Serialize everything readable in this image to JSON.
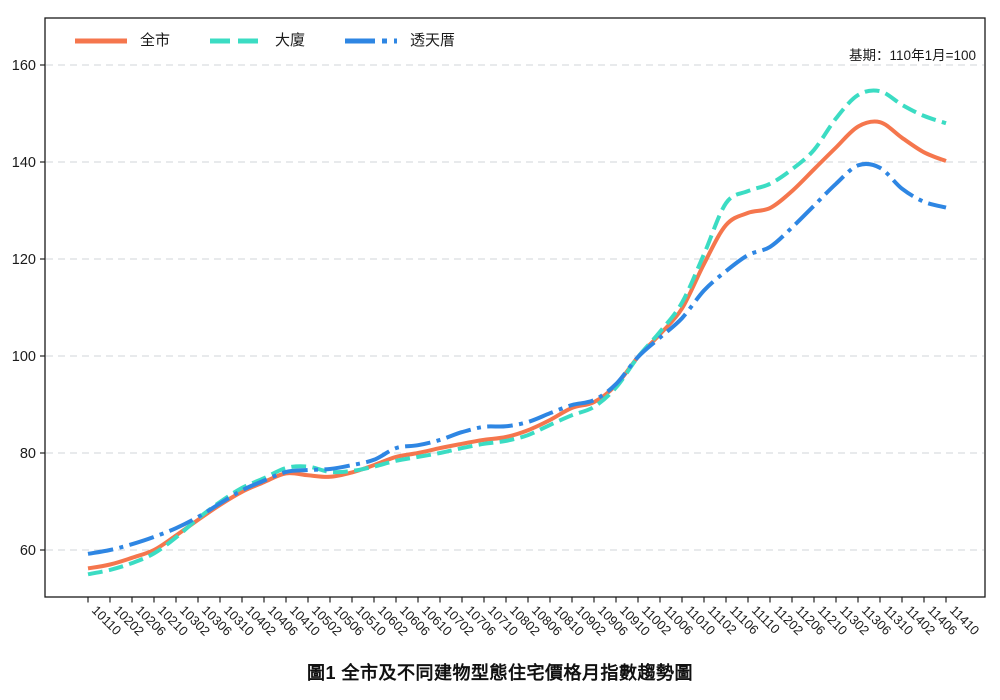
{
  "chart_data": {
    "type": "line",
    "title": "圖1 全市及不同建物型態住宅價格月指數趨勢圖",
    "annotation": "基期：110年1月=100",
    "xlabel": "",
    "ylabel": "",
    "ylim": [
      50,
      170
    ],
    "yticks": [
      60,
      80,
      100,
      120,
      140,
      160
    ],
    "grid": "horizontal-dashed",
    "legend_position": "top-left",
    "x_labels": [
      "10110",
      "10202",
      "10206",
      "10210",
      "10302",
      "10306",
      "10310",
      "10402",
      "10406",
      "10410",
      "10502",
      "10506",
      "10510",
      "10602",
      "10606",
      "10610",
      "10702",
      "10706",
      "10710",
      "10802",
      "10806",
      "10810",
      "10902",
      "10906",
      "10910",
      "11002",
      "11006",
      "11010",
      "11102",
      "11106",
      "11110",
      "11202",
      "11206",
      "11210",
      "11302",
      "11306",
      "11310",
      "11402",
      "11406",
      "11410"
    ],
    "series": [
      {
        "name": "全市",
        "color": "#F5764D",
        "style": "solid",
        "values": [
          56.2,
          57.0,
          58.4,
          60.0,
          63.0,
          66.2,
          69.3,
          72.0,
          74.0,
          75.8,
          75.4,
          75.1,
          76.0,
          77.5,
          79.2,
          80.0,
          81.0,
          81.9,
          82.7,
          83.3,
          84.7,
          86.8,
          89.3,
          90.5,
          94.0,
          99.8,
          104.5,
          109.8,
          119.0,
          127.0,
          129.5,
          130.5,
          134.0,
          138.5,
          143.0,
          147.3,
          148.2,
          145.0,
          142.0,
          140.2
        ]
      },
      {
        "name": "大廈",
        "color": "#3BDCC3",
        "style": "dashed",
        "values": [
          55.0,
          55.9,
          57.3,
          59.3,
          62.6,
          66.5,
          69.9,
          72.8,
          74.8,
          76.9,
          77.2,
          76.1,
          76.3,
          77.2,
          78.4,
          79.2,
          80.0,
          81.0,
          81.9,
          82.5,
          83.7,
          85.8,
          87.8,
          89.5,
          93.5,
          99.8,
          105.0,
          111.0,
          121.0,
          131.5,
          134.0,
          135.5,
          138.5,
          142.5,
          149.0,
          153.8,
          154.6,
          151.8,
          149.5,
          148.0
        ]
      },
      {
        "name": "透天厝",
        "color": "#2E86E3",
        "style": "dashdot",
        "values": [
          59.2,
          60.0,
          61.2,
          62.7,
          64.5,
          66.8,
          69.6,
          72.3,
          74.3,
          76.1,
          76.5,
          76.7,
          77.5,
          78.6,
          81.0,
          81.6,
          82.7,
          84.3,
          85.4,
          85.5,
          86.4,
          88.2,
          89.9,
          90.9,
          94.2,
          99.8,
          103.8,
          107.8,
          113.5,
          117.5,
          120.8,
          122.5,
          126.5,
          131.0,
          135.5,
          139.3,
          138.8,
          134.5,
          131.8,
          130.6
        ]
      }
    ]
  }
}
